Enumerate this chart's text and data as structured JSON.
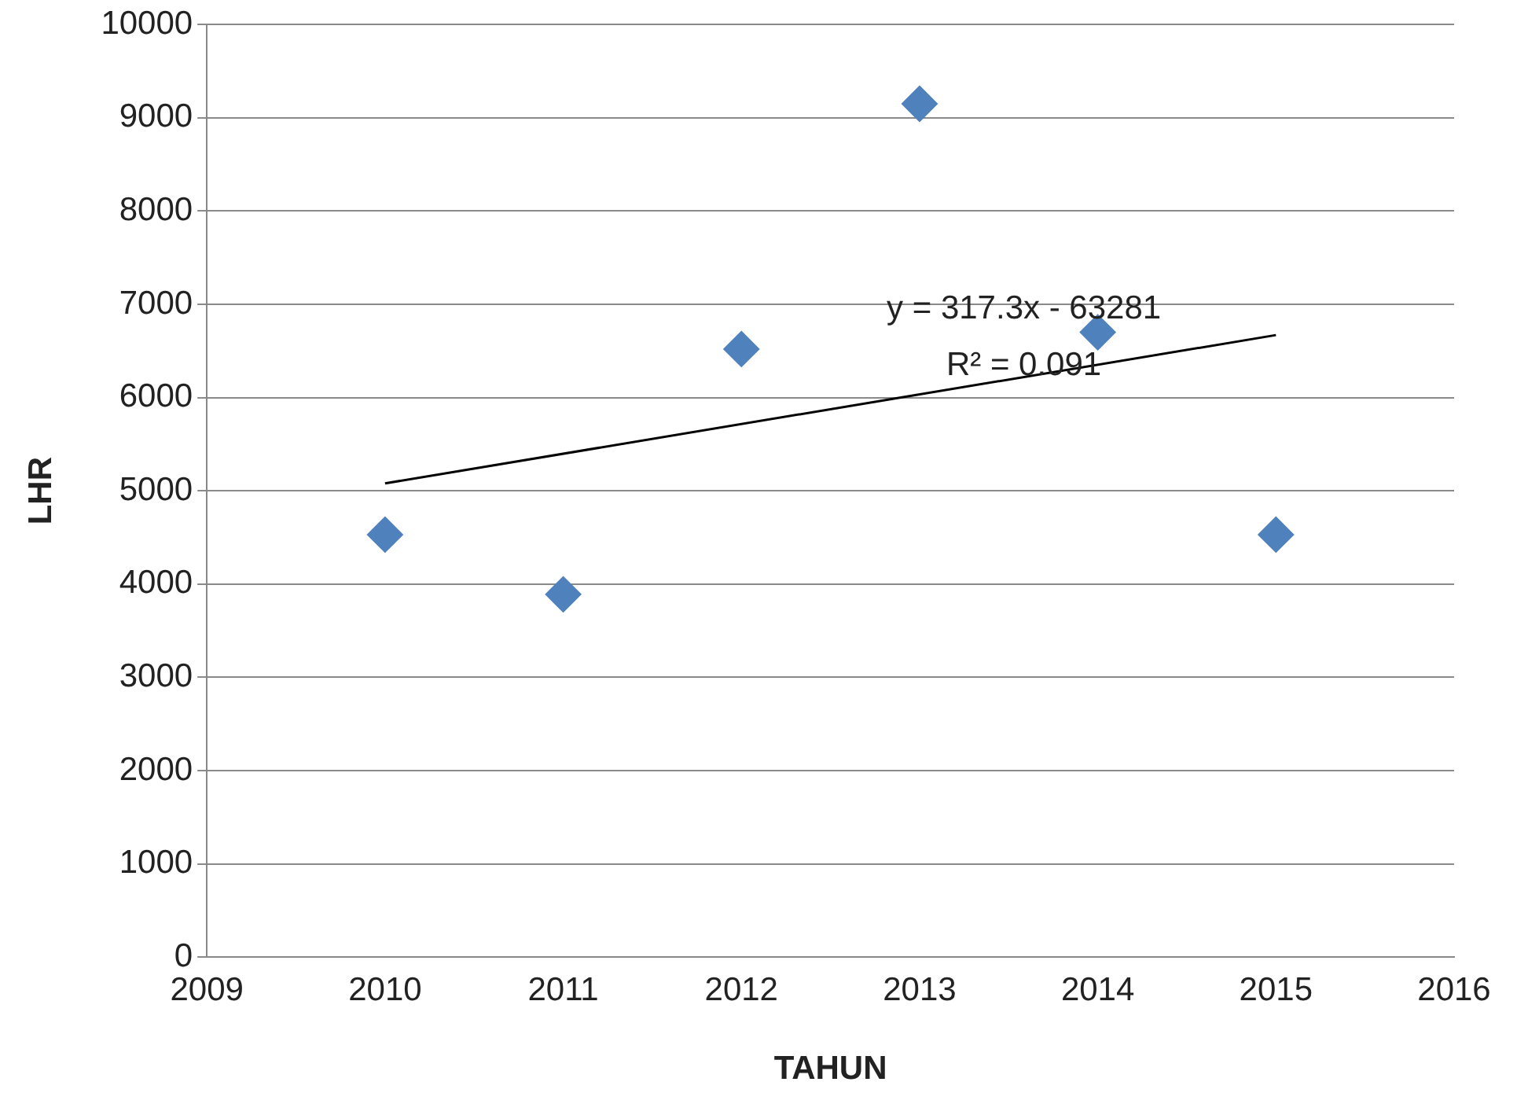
{
  "chart_data": {
    "type": "scatter",
    "xlabel": "TAHUN",
    "ylabel": "LHR",
    "series": [
      {
        "color": "#4f81bd",
        "marker": "diamond",
        "x": [
          2010,
          2011,
          2012,
          2013,
          2014,
          2015
        ],
        "values": [
          4530,
          3890,
          6520,
          9150,
          6700,
          4530
        ]
      },
      {
        "type": "line",
        "color": "#000000",
        "marker": "none",
        "x": [
          2010,
          2015
        ],
        "values": [
          5080,
          6670
        ]
      }
    ],
    "xlim": [
      2009,
      2016
    ],
    "xticks": [
      2009,
      2010,
      2011,
      2012,
      2013,
      2014,
      2015,
      2016
    ],
    "ylim": [
      0,
      10000
    ],
    "yticks": [
      0,
      1000,
      2000,
      3000,
      4000,
      5000,
      6000,
      7000,
      8000,
      9000,
      10000
    ],
    "grid": "y",
    "legend": false,
    "annotations": [
      "y = 317.3x - 63281",
      "R² = 0.091"
    ]
  }
}
